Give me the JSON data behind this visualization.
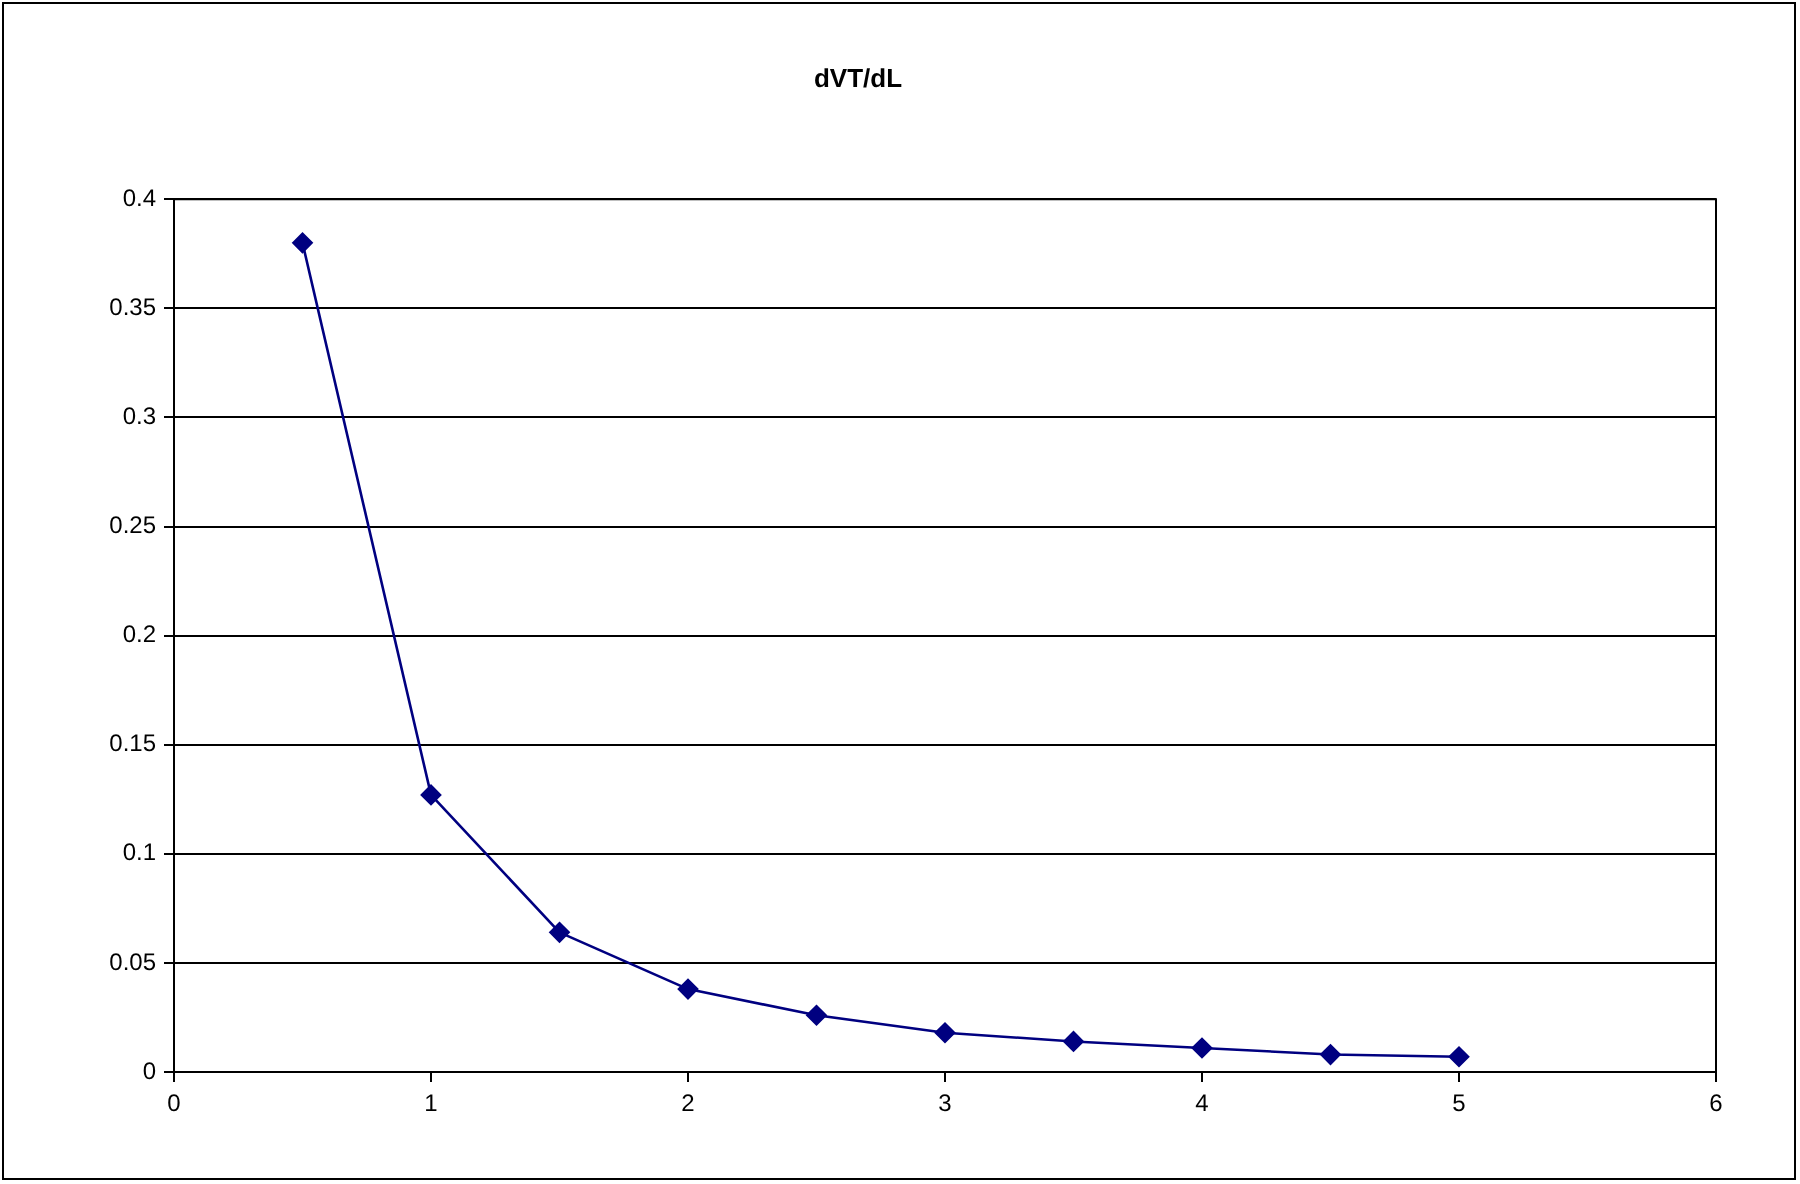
{
  "chart_data": {
    "type": "line",
    "title": "dVT/dL",
    "x": [
      0.5,
      1,
      1.5,
      2,
      2.5,
      3,
      3.5,
      4,
      4.5,
      5
    ],
    "series": [
      {
        "color": "#000080",
        "values": [
          0.38,
          0.127,
          0.064,
          0.038,
          0.026,
          0.018,
          0.014,
          0.011,
          0.008,
          0.007
        ]
      }
    ],
    "xlim": [
      0,
      6
    ],
    "xticks": [
      0,
      1,
      2,
      3,
      4,
      5,
      6
    ],
    "ylim": [
      0,
      0.4
    ],
    "yticks": [
      0,
      0.05,
      0.1,
      0.15,
      0.2,
      0.25,
      0.3,
      0.35,
      0.4
    ],
    "grid": "y",
    "legend": false,
    "marker": "diamond",
    "line_style": "solid"
  }
}
